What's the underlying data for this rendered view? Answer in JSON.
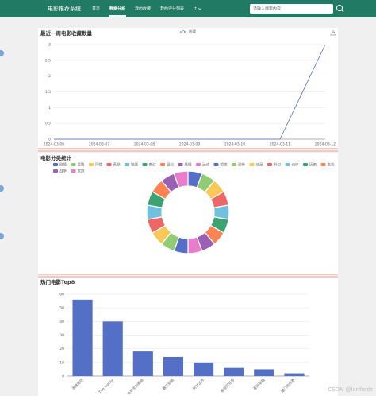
{
  "nav": {
    "brand": "电影推荐系统!",
    "items": [
      "首页",
      "数据分析",
      "我的收藏",
      "我的评分列表",
      "tt"
    ],
    "search_placeholder": "请输入搜索内容"
  },
  "chart_data": [
    {
      "type": "line",
      "title": "最近一周电影收藏数量",
      "categories": [
        "2024-03-06",
        "2024-03-07",
        "2024-03-08",
        "2024-03-09",
        "2024-03-10",
        "2024-03-11",
        "2024-03-12"
      ],
      "series": [
        {
          "name": "收藏",
          "color": "#5470c6",
          "values": [
            0,
            0,
            0,
            0,
            0,
            0,
            3
          ]
        }
      ],
      "ylim": [
        0,
        3
      ],
      "yticks": [
        0,
        0.5,
        1,
        1.5,
        2,
        2.5,
        3
      ],
      "grid": true
    },
    {
      "type": "pie",
      "title": "电影分类统计",
      "categories": [
        "剧情",
        "爱情",
        "同性",
        "喜剧",
        "犯罪",
        "奇幻",
        "冒险",
        "悬疑",
        "运动",
        "惊悚",
        "恐怖",
        "动画",
        "科幻",
        "动作",
        "历史",
        "古装",
        "战争",
        "家庭"
      ],
      "values": [
        1,
        1,
        1,
        1,
        1,
        1,
        1,
        1,
        1,
        1,
        1,
        1,
        1,
        1,
        1,
        1,
        1,
        1
      ],
      "colors": [
        "#5470c6",
        "#91cc75",
        "#fac858",
        "#ee6666",
        "#73c0de",
        "#3ba272",
        "#fc8452",
        "#9a60b4",
        "#ea7ccc",
        "#5470c6",
        "#91cc75",
        "#fac858",
        "#ee6666",
        "#73c0de",
        "#3ba272",
        "#fc8452",
        "#9a60b4",
        "#ea7ccc"
      ]
    },
    {
      "type": "bar",
      "title": "热门电影Top8",
      "categories": [
        "流浪地球",
        "The Matrix",
        "肖申克的救赎",
        "霸王别姬",
        "阿甘正传",
        "泰坦尼克号",
        "星际穿越",
        "楚门的世界"
      ],
      "values": [
        56,
        40,
        18,
        14,
        10,
        6,
        5,
        2
      ],
      "color": "#5470c6",
      "ylim": [
        0,
        60
      ],
      "yticks": [
        0,
        10,
        20,
        30,
        40,
        50,
        60
      ],
      "grid": true
    }
  ],
  "watermark": "CSDN @lanfordr"
}
